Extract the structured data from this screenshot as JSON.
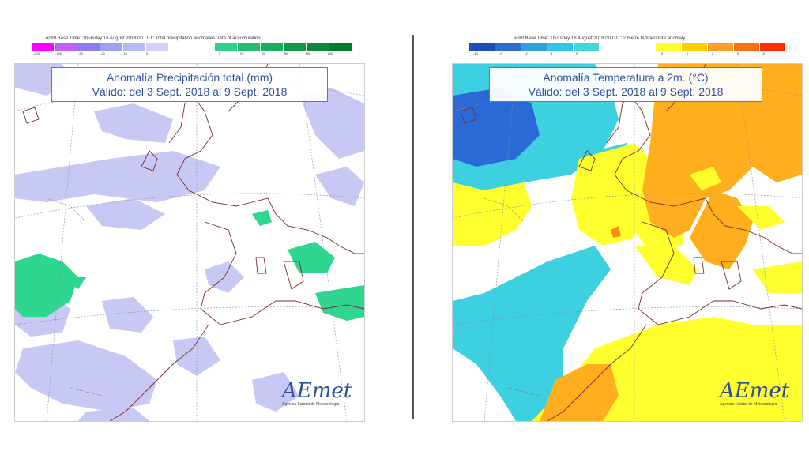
{
  "left": {
    "caption": "ecmf Base Time: Thursday 16 August 2018 00 UTC Total precipitation anomalies: rate of accumulation",
    "legend_neg": {
      "colors": [
        "#ff00ff",
        "#c060ff",
        "#8a7cf0",
        "#9ea0f2",
        "#b8b8f4",
        "#d2d2f8"
      ],
      "ticks": [
        "-200",
        "-100",
        "-50",
        "-20",
        "-10",
        "0"
      ]
    },
    "legend_pos": {
      "colors": [
        "#2fd08a",
        "#20c070",
        "#18b060",
        "#109848",
        "#0a8a3a",
        "#007a30"
      ],
      "ticks": [
        "0",
        "10",
        "20",
        "50",
        "100",
        "200"
      ]
    },
    "title_line1": "Anomalía Precipitación total (mm)",
    "title_line2": "Válido: del 3 Sept. 2018 al 9 Sept. 2018"
  },
  "right": {
    "caption": "ecmf Base Time: Thursday 16 August 2018 00 UTC 2 metre temperature anomaly",
    "legend_neg": {
      "colors": [
        "#1a4fb8",
        "#2a6fd0",
        "#2fa0e0",
        "#30c8e0",
        "#40d8d8"
      ],
      "ticks": [
        "-10",
        "-5",
        "-2",
        "-1",
        "0"
      ]
    },
    "legend_pos": {
      "colors": [
        "#ffff30",
        "#ffd000",
        "#ffa020",
        "#ff7010",
        "#ff3000"
      ],
      "ticks": [
        "0",
        "1",
        "2",
        "5",
        "10"
      ]
    },
    "title_line1": "Anomalía Temperatura a 2m. (°C)",
    "title_line2": "Válido: del 3 Sept. 2018 al 9 Sept. 2018"
  },
  "logo": {
    "wordmark": "AEmet",
    "subtitle": "Agencia Estatal de Meteorología"
  },
  "colors": {
    "precip_dry": "#c8c8f4",
    "precip_wet": "#2ed68e",
    "temp_cold_strong": "#2a6ad6",
    "temp_cold": "#3cd0e0",
    "temp_warm": "#ffff2e",
    "temp_hot": "#ffae1e",
    "temp_hotter": "#ff8c1a",
    "coast": "#7a2a2a",
    "title_text": "#2f4f9f"
  }
}
